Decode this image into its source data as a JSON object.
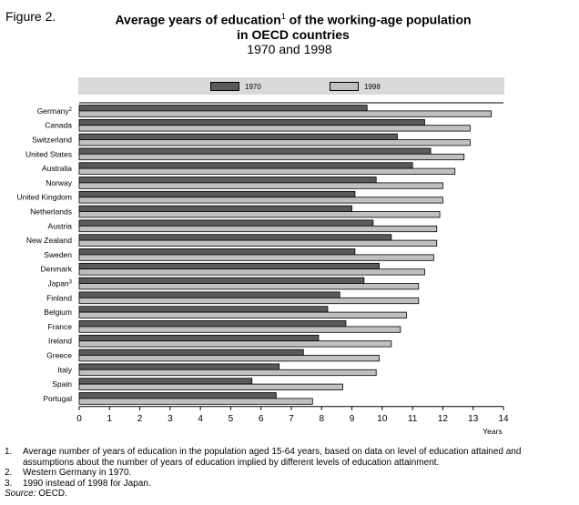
{
  "figure": {
    "label": "Figure 2.",
    "title_line1": "Average years of education",
    "title_sup": "1",
    "title_line1_rest": " of the working-age population",
    "title_line2": "in OECD countries",
    "subtitle": "1970 and 1998"
  },
  "legend": {
    "s1970": "1970",
    "s1998": "1998"
  },
  "colors": {
    "s1970": "#5a5a5a",
    "s1998": "#c0c0c0",
    "legend_bg": "#d9d9d9"
  },
  "footnotes": [
    {
      "num": "1.",
      "text": "Average number of years of education in the population aged 15-64 years, based on data on level of education attained and assumptions about the number of years of education implied by different levels of education attainment."
    },
    {
      "num": "2.",
      "text": "Western Germany in 1970."
    },
    {
      "num": "3.",
      "text": "1990 instead of 1998 for Japan."
    }
  ],
  "source": {
    "label": "Source:",
    "text": "OECD."
  },
  "chart_data": {
    "type": "bar",
    "orientation": "horizontal",
    "categories": [
      "Germany",
      "Canada",
      "Switzerland",
      "United States",
      "Australia",
      "Norway",
      "United Kingdom",
      "Netherlands",
      "Austria",
      "New Zealand",
      "Sweden",
      "Denmark",
      "Japan",
      "Finland",
      "Belgium",
      "France",
      "Ireland",
      "Greece",
      "Italy",
      "Spain",
      "Portugal"
    ],
    "category_sups": [
      "2",
      "",
      "",
      "",
      "",
      "",
      "",
      "",
      "",
      "",
      "",
      "",
      "3",
      "",
      "",
      "",
      "",
      "",
      "",
      "",
      ""
    ],
    "series": [
      {
        "name": "1970",
        "values": [
          9.5,
          11.4,
          10.5,
          11.6,
          11.0,
          9.8,
          9.1,
          9.0,
          9.7,
          10.3,
          9.1,
          9.9,
          9.4,
          8.6,
          8.2,
          8.8,
          7.9,
          7.4,
          6.6,
          5.7,
          6.5
        ]
      },
      {
        "name": "1998",
        "values": [
          13.6,
          12.9,
          12.9,
          12.7,
          12.4,
          12.0,
          12.0,
          11.9,
          11.8,
          11.8,
          11.7,
          11.4,
          11.2,
          11.2,
          10.8,
          10.6,
          10.3,
          9.9,
          9.8,
          8.7,
          7.7
        ]
      }
    ],
    "xlabel": "Years",
    "xlim": [
      0,
      14
    ],
    "xticks": [
      "0",
      "1",
      "2",
      "3",
      "4",
      "5",
      "6",
      "7",
      "8",
      "9",
      "10",
      "11",
      "12",
      "13",
      "14"
    ],
    "legend_position": "top",
    "grid": false
  }
}
